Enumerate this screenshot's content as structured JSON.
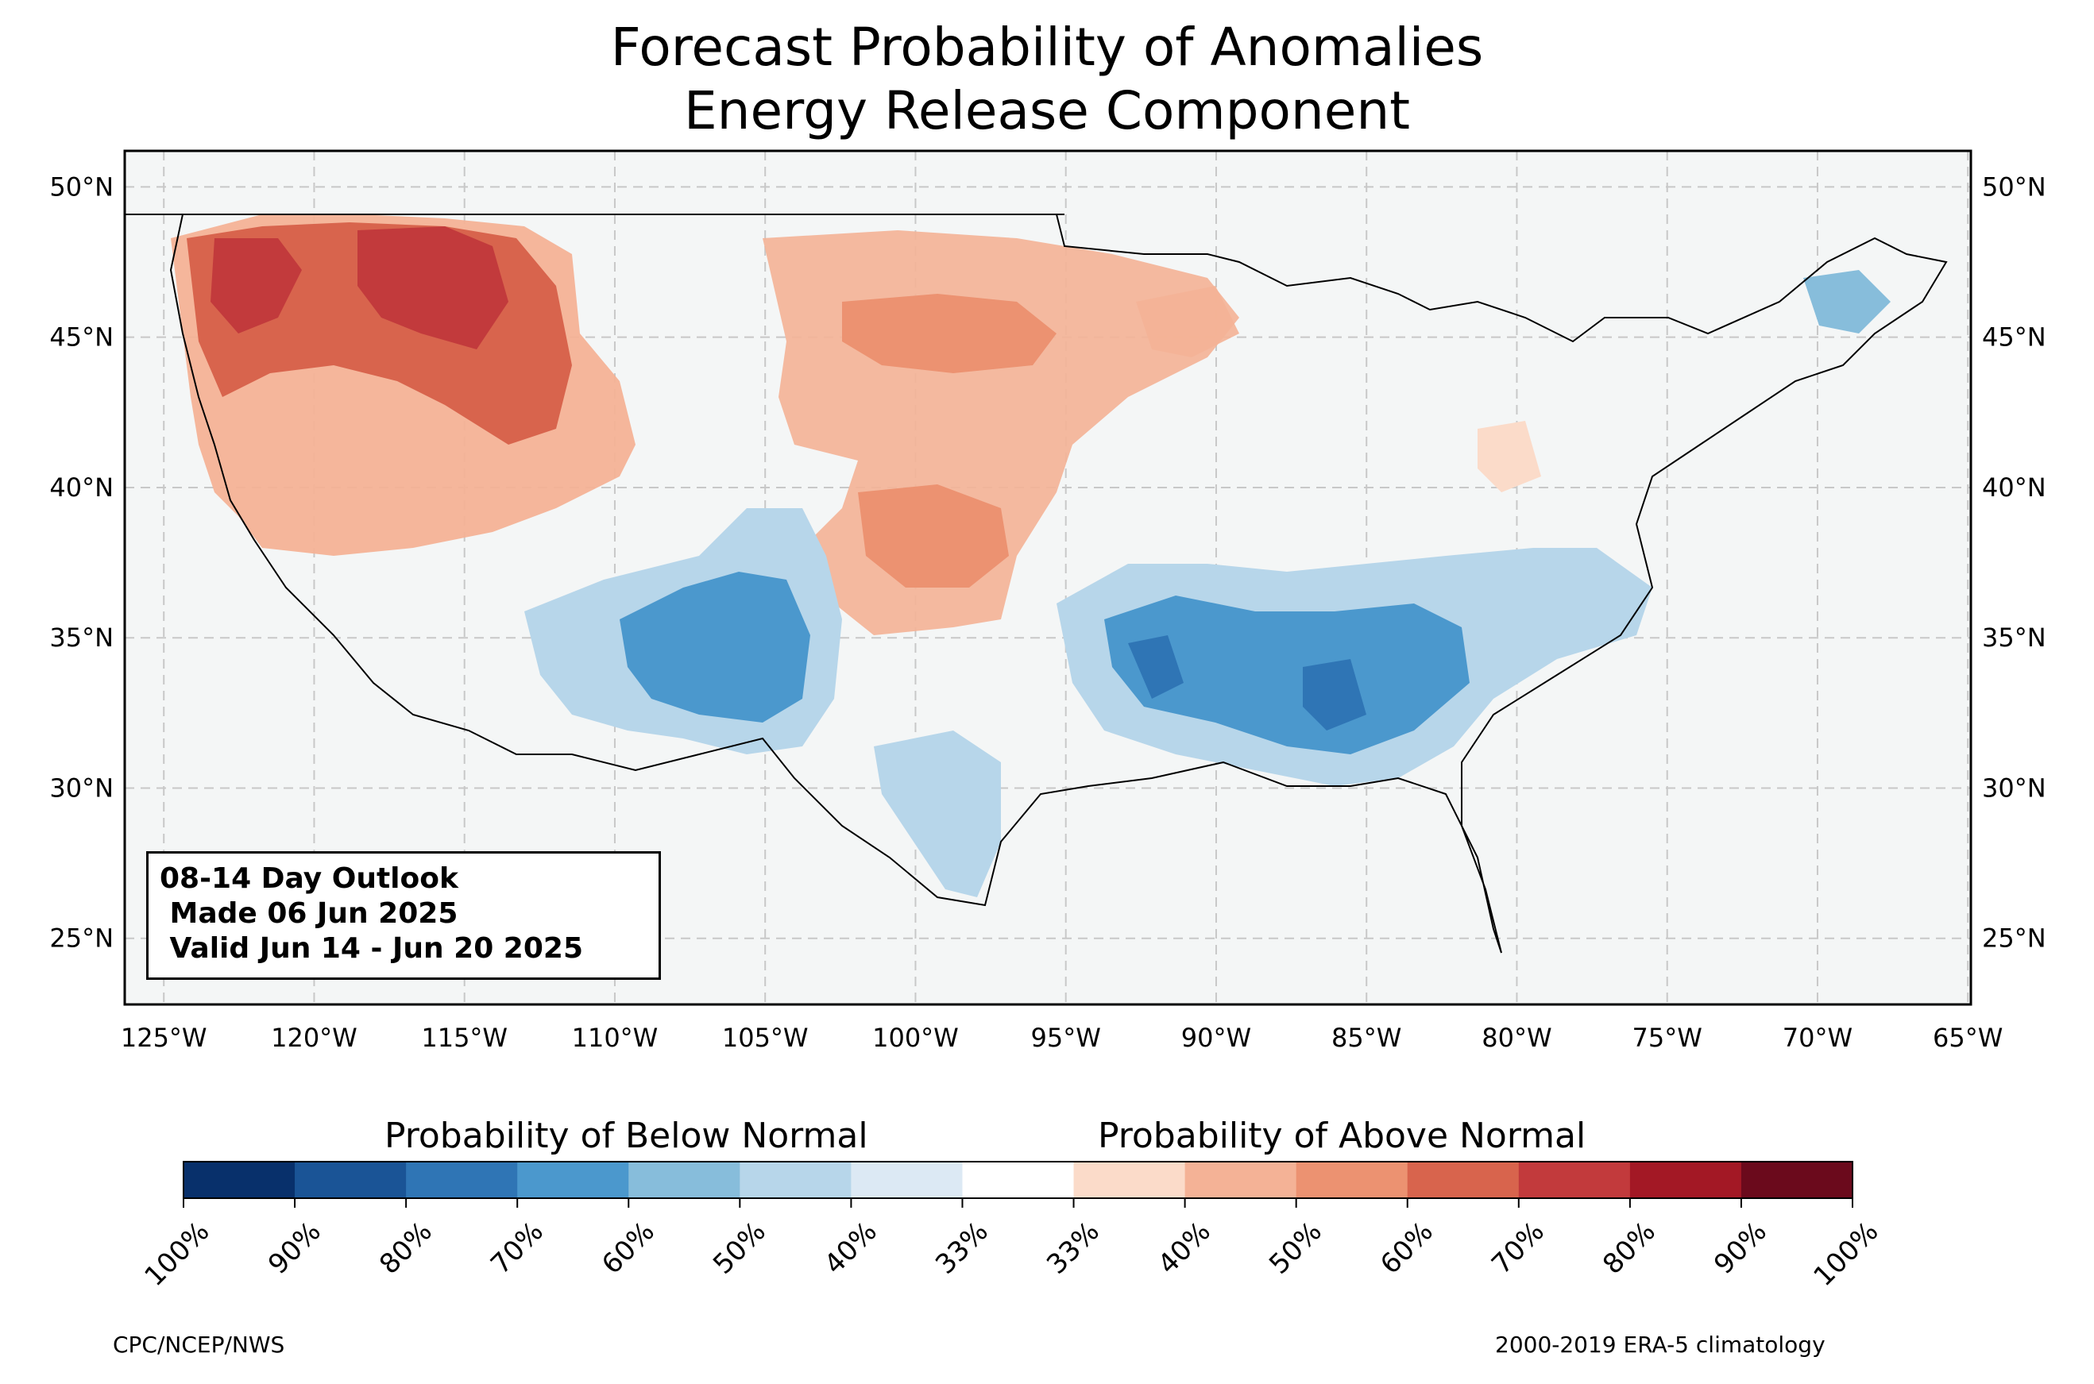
{
  "title": {
    "line1": "Forecast Probability of Anomalies",
    "line2": "Energy Release Component"
  },
  "map": {
    "lat_labels": [
      "50°N",
      "45°N",
      "40°N",
      "35°N",
      "30°N",
      "25°N"
    ],
    "lon_labels": [
      "125°W",
      "120°W",
      "115°W",
      "110°W",
      "105°W",
      "100°W",
      "95°W",
      "90°W",
      "85°W",
      "80°W",
      "75°W",
      "70°W",
      "65°W"
    ],
    "ocean_color": "#f4f6f6",
    "land_color": "#f4f6f6"
  },
  "info_box": {
    "line1": "08-14 Day Outlook",
    "line2": " Made 06 Jun 2025",
    "line3": " Valid Jun 14 - Jun 20 2025"
  },
  "colorbar": {
    "below_label": "Probability of Below Normal",
    "above_label": "Probability of Above Normal",
    "tick_labels": [
      "100%",
      "90%",
      "80%",
      "70%",
      "60%",
      "50%",
      "40%",
      "33%",
      "33%",
      "40%",
      "50%",
      "60%",
      "70%",
      "80%",
      "90%",
      "100%"
    ],
    "colors": [
      "#08306b",
      "#1a5496",
      "#2f75b5",
      "#4b98cd",
      "#87bddb",
      "#b7d6ea",
      "#dce9f4",
      "#ffffff",
      "#fbdbc9",
      "#f4b296",
      "#ec9271",
      "#d8644d",
      "#c23a3c",
      "#a31825",
      "#6b0a1c"
    ]
  },
  "footer": {
    "left": "CPC/NCEP/NWS",
    "right": "2000-2019 ERA-5 climatology"
  }
}
